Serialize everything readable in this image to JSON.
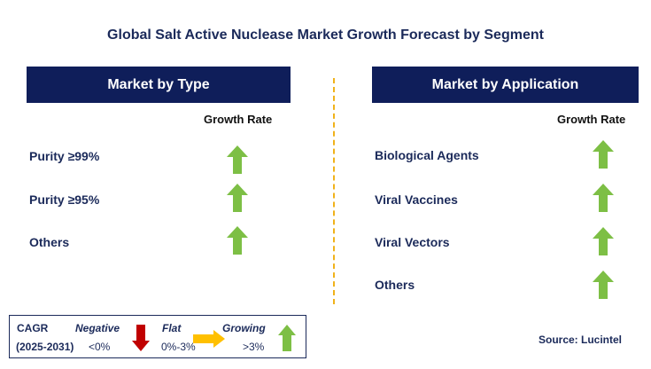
{
  "title": "Global Salt Active Nuclease Market Growth Forecast by Segment",
  "left_panel": {
    "header": "Market by Type",
    "growth_label": "Growth Rate",
    "items": [
      {
        "label": "Purity ≥99%",
        "trend": "growing"
      },
      {
        "label": "Purity ≥95%",
        "trend": "growing"
      },
      {
        "label": "Others",
        "trend": "growing"
      }
    ]
  },
  "right_panel": {
    "header": "Market by Application",
    "growth_label": "Growth Rate",
    "items": [
      {
        "label": "Biological Agents",
        "trend": "growing"
      },
      {
        "label": "Viral Vaccines",
        "trend": "growing"
      },
      {
        "label": "Viral Vectors",
        "trend": "growing"
      },
      {
        "label": "Others",
        "trend": "growing"
      }
    ]
  },
  "legend": {
    "cagr_label": "CAGR",
    "period": "(2025-2031)",
    "negative": {
      "label": "Negative",
      "range": "<0%"
    },
    "flat": {
      "label": "Flat",
      "range": "0%-3%"
    },
    "growing": {
      "label": "Growing",
      "range": ">3%"
    }
  },
  "source": "Source: Lucintel",
  "colors": {
    "header_bg": "#0f1e5a",
    "growing": "#7dbf45",
    "negative": "#c00000",
    "flat": "#ffc000",
    "divider": "#f0b21b"
  },
  "icons": {
    "growing": "green-up-arrow-icon",
    "negative": "red-down-arrow-icon",
    "flat": "yellow-right-arrow-icon"
  }
}
